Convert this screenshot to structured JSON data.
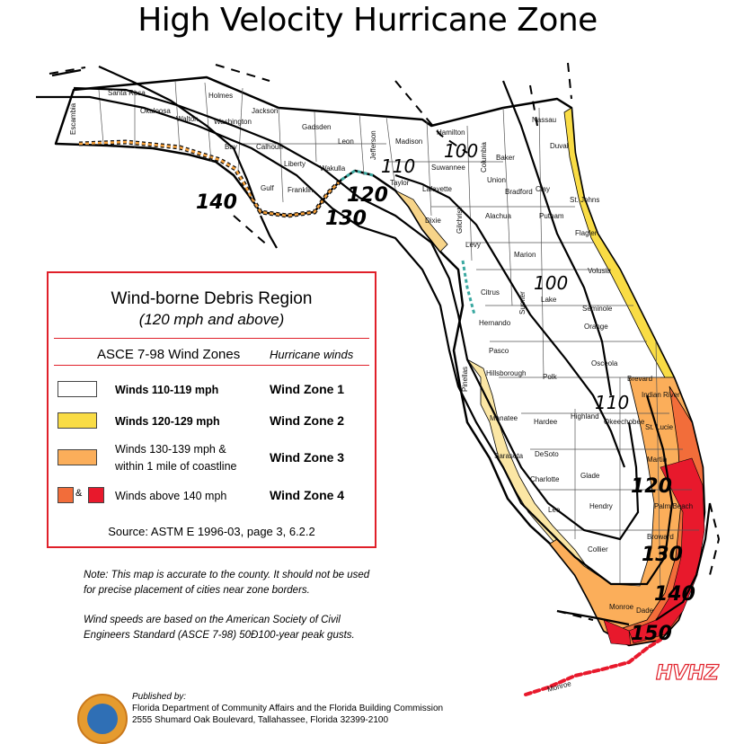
{
  "title": "High Velocity Hurricane Zone",
  "colors": {
    "zone1": "#ffffff",
    "zone2": "#f9dc45",
    "zone3": "#fbae5a",
    "zone4a": "#f26d3a",
    "zone4b": "#e8192c",
    "coast_gulf": "#f7d489",
    "legend_border": "#e0202a"
  },
  "counties": [
    "Escambia",
    "Santa Rosa",
    "Okaloosa",
    "Walton",
    "Holmes",
    "Washington",
    "Jackson",
    "Bay",
    "Calhoun",
    "Gadsden",
    "Leon",
    "Madison",
    "Hamilton",
    "Liberty",
    "Gulf",
    "Franklin",
    "Wakulla",
    "Jefferson",
    "Taylor",
    "Suwannee",
    "Columbia",
    "Baker",
    "Nassau",
    "Duval",
    "Union",
    "Bradford",
    "Clay",
    "St. Johns",
    "Lafayette",
    "Dixie",
    "Gilchrist",
    "Alachua",
    "Putnam",
    "Flagler",
    "Levy",
    "Marion",
    "Volusia",
    "Citrus",
    "Sumter",
    "Lake",
    "Seminole",
    "Orange",
    "Hernando",
    "Pasco",
    "Osceola",
    "Brevard",
    "Hillsborough",
    "Polk",
    "Pinellas",
    "Indian River",
    "Manatee",
    "Hardee",
    "Highland",
    "Okeechobee",
    "St. Lucie",
    "Sarasota",
    "DeSoto",
    "Martin",
    "Charlotte",
    "Glade",
    "Lee",
    "Hendry",
    "Palm Beach",
    "Broward",
    "Collier",
    "Dade",
    "Monroe",
    "Monroe"
  ],
  "speed_labels": [
    "140",
    "130",
    "120",
    "110",
    "100",
    "100",
    "110",
    "120",
    "130",
    "140",
    "150"
  ],
  "legend": {
    "title": "Wind-borne Debris Region",
    "subtitle": "(120 mph and above)",
    "header_left": "ASCE 7-98 Wind Zones",
    "header_right": "Hurricane winds",
    "rows": [
      {
        "label": "Winds 110-119 mph",
        "zone": "Wind Zone 1"
      },
      {
        "label": "Winds 120-129 mph",
        "zone": "Wind Zone 2"
      },
      {
        "label": "Winds 130-139 mph &",
        "label2": "within 1 mile of coastline",
        "zone": "Wind Zone 3"
      },
      {
        "label": "Winds above 140 mph",
        "zone": "Wind Zone 4"
      }
    ],
    "amp": "&",
    "source": "Source: ASTM E 1996-03, page 3, 6.2.2"
  },
  "notes": [
    "Note: This map is accurate to the county. It should not be used for precise placement of cities near zone borders.",
    "Wind speeds are based on the American Society of Civil Engineers Standard (ASCE 7-98) 50Ð100-year peak gusts."
  ],
  "publisher": {
    "by": "Published by:",
    "org": "Florida Department of Community Affairs and the Florida Building Commission",
    "address": "2555 Shumard Oak Boulevard, Tallahassee, Florida 32399-2100"
  },
  "hvhz": "HVHZ"
}
